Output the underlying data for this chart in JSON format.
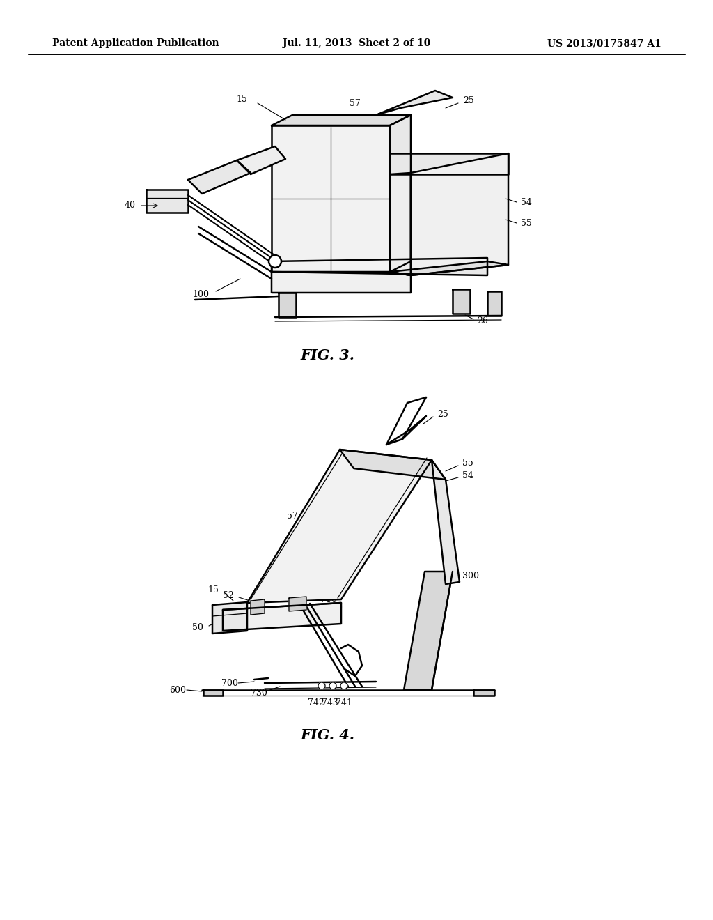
{
  "background_color": "#ffffff",
  "header_left": "Patent Application Publication",
  "header_center": "Jul. 11, 2013  Sheet 2 of 10",
  "header_right": "US 2013/0175847 A1",
  "fig3_caption": "FIG. 3.",
  "fig4_caption": "FIG. 4.",
  "line_color": "#000000",
  "lw_main": 1.8,
  "lw_thin": 0.9,
  "lw_label": 0.8
}
